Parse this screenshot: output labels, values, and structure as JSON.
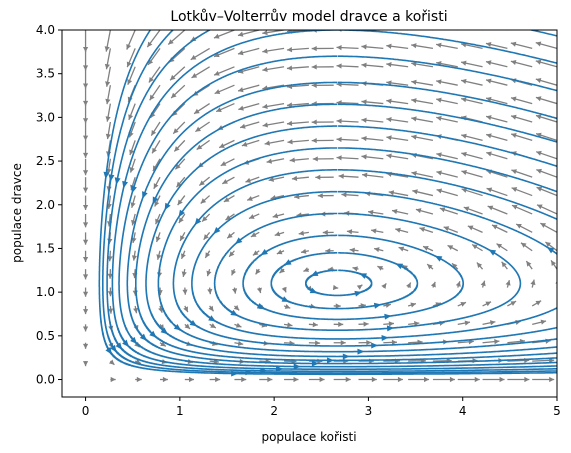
{
  "chart_data": {
    "type": "streamplot",
    "title": "Lotkův–Volterrův model dravce a kořisti",
    "xlabel": "populace kořisti",
    "ylabel": "populace dravce",
    "xlim": [
      -0.25,
      5
    ],
    "ylim": [
      -0.2,
      4
    ],
    "xticks": [
      0,
      1,
      2,
      3,
      4,
      5
    ],
    "yticks": [
      0.0,
      0.5,
      1.0,
      1.5,
      2.0,
      2.5,
      3.0,
      3.5,
      4.0
    ],
    "xtick_labels": [
      "0",
      "1",
      "2",
      "3",
      "4",
      "5"
    ],
    "ytick_labels": [
      "0.0",
      "0.5",
      "1.0",
      "1.5",
      "2.0",
      "2.5",
      "3.0",
      "3.5",
      "4.0"
    ],
    "equilibrium": [
      2.67,
      1.1
    ],
    "grid": false,
    "colors": {
      "streamlines": "#1f77b4",
      "quiver": "#808080",
      "axes": "#000000"
    }
  }
}
